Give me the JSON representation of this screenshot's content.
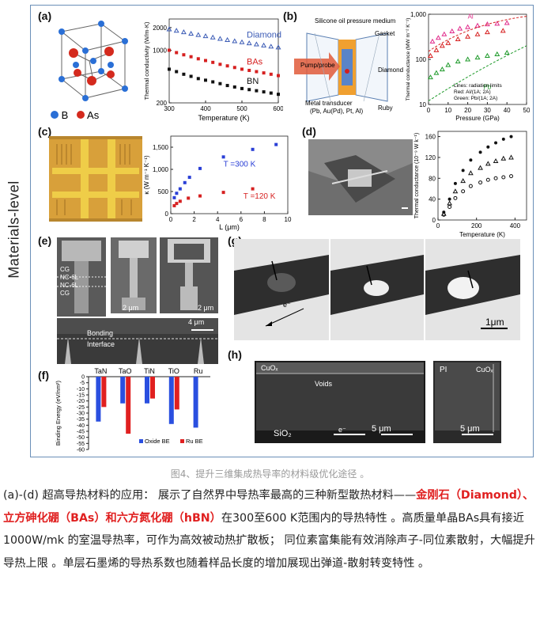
{
  "side_label": "Materials-level",
  "panel_labels": [
    "(a)",
    "(b)",
    "(c)",
    "(d)",
    "(e)",
    "(f)",
    "(g)",
    "(h)"
  ],
  "panel_a": {
    "legend": [
      {
        "symbol": "B",
        "color": "#2a6fd6"
      },
      {
        "symbol": "As",
        "color": "#d42a1e"
      }
    ]
  },
  "panel_a_chart": {
    "chart_data": {
      "type": "scatter",
      "xlabel": "Temperature (K)",
      "ylabel": "Thermal conductivity (W/m·K)",
      "xlim": [
        300,
        600
      ],
      "xticks": [
        "300",
        "400",
        "500",
        "600"
      ],
      "yticks": [
        "200",
        "1000",
        "2000"
      ],
      "series": [
        {
          "name": "Diamond",
          "color": "#3b5bb5",
          "marker": "triangle",
          "x": [
            300,
            320,
            340,
            360,
            380,
            400,
            420,
            440,
            460,
            480,
            500,
            520,
            540,
            560,
            580,
            600
          ],
          "y": [
            1900,
            1820,
            1740,
            1660,
            1600,
            1540,
            1480,
            1420,
            1370,
            1320,
            1280,
            1240,
            1200,
            1160,
            1120,
            1090
          ]
        },
        {
          "name": "BAs",
          "color": "#d62020",
          "marker": "square",
          "x": [
            300,
            320,
            340,
            360,
            380,
            400,
            420,
            440,
            460,
            480,
            500,
            520,
            540,
            560,
            580,
            600
          ],
          "y": [
            1000,
            930,
            870,
            820,
            770,
            730,
            690,
            650,
            620,
            590,
            560,
            540,
            520,
            500,
            480,
            460
          ]
        },
        {
          "name": "BN",
          "color": "#111111",
          "marker": "square",
          "x": [
            300,
            320,
            340,
            360,
            380,
            400,
            420,
            440,
            460,
            480,
            500,
            520,
            540,
            560,
            580,
            600
          ],
          "y": [
            560,
            520,
            480,
            450,
            420,
            400,
            380,
            360,
            340,
            325,
            310,
            300,
            290,
            280,
            270,
            260
          ]
        }
      ]
    }
  },
  "panel_b": {
    "labels": {
      "medium": "Silicone oil pressure medium",
      "gasket": "Gasket",
      "pump": "Pump/probe",
      "diamond": "Diamond",
      "transducer": "Metal transducer",
      "transducer2": "(Pb, Au(Pd), Pt, Al)",
      "ruby": "Ruby"
    }
  },
  "panel_b_chart": {
    "chart_data": {
      "type": "scatter",
      "xlabel": "Pressure (GPa)",
      "ylabel": "Thermal conductance (MW m⁻² K⁻¹)",
      "xticks": [
        "0",
        "10",
        "20",
        "30",
        "40",
        "50"
      ],
      "yticks": [
        "10",
        "100",
        "1,000"
      ],
      "annotations": [
        "Al",
        "Pb",
        "Lines: radiation limits",
        "Red: Al/(1A; 2A)",
        "Green: Pb/(1A; 2A)"
      ],
      "series": [
        {
          "name": "Al",
          "color": "#e02a8a",
          "x": [
            2,
            5,
            8,
            12,
            16,
            20,
            25,
            30,
            35,
            40
          ],
          "y": [
            250,
            300,
            360,
            420,
            480,
            520,
            560,
            600,
            620,
            640
          ]
        },
        {
          "name": "Al-2",
          "color": "#d62020",
          "x": [
            1,
            4,
            7,
            10,
            15,
            20,
            25,
            30,
            38
          ],
          "y": [
            120,
            160,
            200,
            230,
            280,
            320,
            360,
            400,
            430
          ]
        },
        {
          "name": "Pb",
          "color": "#1e9a2a",
          "x": [
            1,
            4,
            7,
            10,
            15,
            20,
            25,
            30,
            35,
            40
          ],
          "y": [
            40,
            50,
            60,
            75,
            90,
            100,
            110,
            120,
            130,
            140
          ]
        }
      ]
    }
  },
  "panel_c_chart": {
    "chart_data": {
      "type": "scatter",
      "xlabel": "L (μm)",
      "ylabel": "κ (W m⁻¹ K⁻¹)",
      "xlim": [
        0,
        10
      ],
      "ylim": [
        0,
        1750
      ],
      "xticks": [
        "0",
        "2",
        "4",
        "6",
        "8",
        "10"
      ],
      "yticks": [
        "0",
        "500",
        "1,000",
        "1,500"
      ],
      "annotations": [
        "T =300 K",
        "T =120 K"
      ],
      "series": [
        {
          "name": "T =300 K",
          "color": "#2a3fd6",
          "x": [
            0.3,
            0.5,
            0.8,
            1.2,
            1.6,
            2.5,
            4.5,
            7,
            9
          ],
          "y": [
            360,
            460,
            560,
            700,
            820,
            1020,
            1280,
            1450,
            1560
          ]
        },
        {
          "name": "T =120 K",
          "color": "#d62020",
          "x": [
            0.3,
            0.5,
            0.8,
            1.5,
            2.5,
            4.5,
            7
          ],
          "y": [
            180,
            230,
            280,
            350,
            400,
            480,
            560
          ]
        }
      ]
    }
  },
  "panel_d_chart": {
    "chart_data": {
      "type": "scatter",
      "xlabel": "Temperature (K)",
      "ylabel": "Thermal conductance (10⁻⁹ W k⁻¹)",
      "xlim": [
        0,
        460
      ],
      "ylim": [
        0,
        170
      ],
      "xticks": [
        "0",
        "200",
        "400"
      ],
      "yticks": [
        "0",
        "40",
        "80",
        "120",
        "160"
      ],
      "series": [
        {
          "name": "filled",
          "color": "#111",
          "x": [
            30,
            60,
            90,
            130,
            170,
            220,
            260,
            300,
            340,
            380
          ],
          "y": [
            15,
            40,
            70,
            95,
            115,
            130,
            140,
            148,
            155,
            160
          ]
        },
        {
          "name": "open-triangle",
          "color": "#111",
          "x": [
            30,
            60,
            90,
            130,
            170,
            220,
            260,
            300,
            340,
            380
          ],
          "y": [
            12,
            32,
            55,
            75,
            90,
            100,
            108,
            113,
            118,
            120
          ]
        },
        {
          "name": "open-circle",
          "color": "#111",
          "x": [
            30,
            60,
            90,
            130,
            170,
            220,
            260,
            300,
            340,
            380
          ],
          "y": [
            10,
            25,
            42,
            55,
            65,
            72,
            77,
            80,
            82,
            84
          ]
        }
      ]
    }
  },
  "panel_e": {
    "labels": [
      "CG",
      "NC-6L",
      "NC-6L",
      "CG",
      "2 μm",
      "2 μm",
      "4 μm",
      "Bonding",
      "Interface"
    ]
  },
  "panel_f_chart": {
    "chart_data": {
      "type": "bar",
      "categories": [
        "TaN",
        "TaO",
        "TiN",
        "TiO",
        "Ru"
      ],
      "ylabel": "Binding Energy (eV/nm²)",
      "ylim": [
        -60,
        0
      ],
      "yticks": [
        "0",
        "-5",
        "-10",
        "-15",
        "-20",
        "-25",
        "-30",
        "-35",
        "-40",
        "-45",
        "-50",
        "-55",
        "-60"
      ],
      "series": [
        {
          "name": "Oxide BE",
          "color": "#2a4fe0",
          "values": [
            -37,
            -22,
            -22,
            -39,
            -42
          ]
        },
        {
          "name": "Ru BE",
          "color": "#e02020",
          "values": [
            -25,
            -47,
            -18,
            -27,
            0
          ]
        }
      ]
    }
  },
  "panel_g": {
    "labels": [
      "e⁻",
      "1μm"
    ]
  },
  "panel_h": {
    "labels": [
      "CuOₓ",
      "Voids",
      "SiO₂",
      "e⁻",
      "5 μm",
      "PI",
      "CuOₓ",
      "5 μm"
    ]
  },
  "caption": "图4、提升三维集成热导率的材料级优化途径 。",
  "body": {
    "p1": "(a)-(d) 超高导热材料的应用： 展示了自然界中导热率最高的三种新型散热材料——",
    "hl": "金刚石（Diamond）、立方砷化硼（BAs）和六方氮化硼（hBN）",
    "p2": "在300至600 K范围内的导热特性 。高质量单晶BAs具有接近 1000W/mk 的室温导热率，可作为高效被动热扩散板； 同位素富集能有效消除声子-同位素散射，大幅提升导热上限 。单层石墨烯的导热系数也随着样品长度的增加展现出弹道-散射转变特性 。"
  }
}
